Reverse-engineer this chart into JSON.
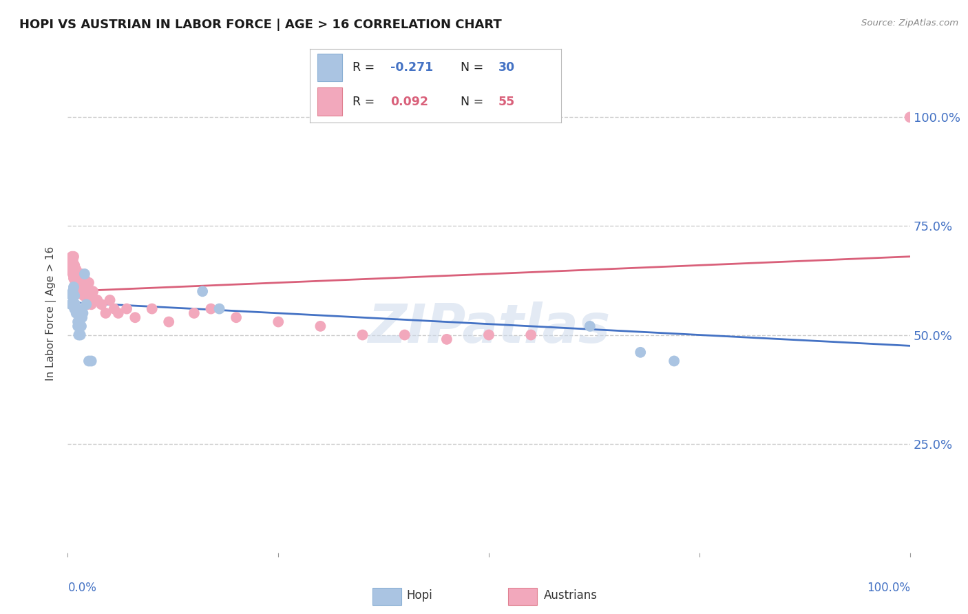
{
  "title": "HOPI VS AUSTRIAN IN LABOR FORCE | AGE > 16 CORRELATION CHART",
  "ylabel": "In Labor Force | Age > 16",
  "source_text": "Source: ZipAtlas.com",
  "watermark": "ZIPatlas",
  "hopi_color": "#aac4e2",
  "austrian_color": "#f2a8bc",
  "hopi_line_color": "#4472c4",
  "austrian_line_color": "#d9607a",
  "hopi_R": -0.271,
  "hopi_N": 30,
  "austrian_R": 0.092,
  "austrian_N": 55,
  "background_color": "#ffffff",
  "grid_color": "#cccccc",
  "ytick_labels": [
    "25.0%",
    "50.0%",
    "75.0%",
    "100.0%"
  ],
  "ytick_values": [
    0.25,
    0.5,
    0.75,
    1.0
  ],
  "hopi_x": [
    0.004,
    0.005,
    0.005,
    0.006,
    0.007,
    0.007,
    0.008,
    0.008,
    0.008,
    0.009,
    0.01,
    0.01,
    0.011,
    0.012,
    0.012,
    0.013,
    0.014,
    0.015,
    0.016,
    0.017,
    0.018,
    0.02,
    0.022,
    0.025,
    0.028,
    0.16,
    0.18,
    0.62,
    0.68,
    0.72
  ],
  "hopi_y": [
    0.57,
    0.59,
    0.57,
    0.6,
    0.61,
    0.59,
    0.59,
    0.57,
    0.56,
    0.57,
    0.56,
    0.55,
    0.56,
    0.53,
    0.52,
    0.5,
    0.53,
    0.5,
    0.52,
    0.54,
    0.55,
    0.64,
    0.57,
    0.44,
    0.44,
    0.6,
    0.56,
    0.52,
    0.46,
    0.44
  ],
  "austrian_x": [
    0.003,
    0.004,
    0.005,
    0.005,
    0.006,
    0.006,
    0.007,
    0.007,
    0.007,
    0.008,
    0.008,
    0.009,
    0.009,
    0.01,
    0.01,
    0.011,
    0.012,
    0.013,
    0.013,
    0.014,
    0.015,
    0.015,
    0.016,
    0.017,
    0.018,
    0.019,
    0.02,
    0.021,
    0.022,
    0.023,
    0.025,
    0.027,
    0.028,
    0.03,
    0.035,
    0.04,
    0.045,
    0.05,
    0.055,
    0.06,
    0.07,
    0.08,
    0.1,
    0.12,
    0.15,
    0.17,
    0.2,
    0.25,
    0.3,
    0.35,
    0.4,
    0.45,
    0.5,
    0.55,
    1.0
  ],
  "austrian_y": [
    0.65,
    0.67,
    0.68,
    0.66,
    0.67,
    0.64,
    0.68,
    0.66,
    0.63,
    0.66,
    0.63,
    0.64,
    0.62,
    0.65,
    0.63,
    0.62,
    0.64,
    0.63,
    0.61,
    0.62,
    0.63,
    0.6,
    0.64,
    0.62,
    0.61,
    0.59,
    0.63,
    0.62,
    0.6,
    0.57,
    0.62,
    0.59,
    0.57,
    0.6,
    0.58,
    0.57,
    0.55,
    0.58,
    0.56,
    0.55,
    0.56,
    0.54,
    0.56,
    0.53,
    0.55,
    0.56,
    0.54,
    0.53,
    0.52,
    0.5,
    0.5,
    0.49,
    0.5,
    0.5,
    1.0
  ]
}
